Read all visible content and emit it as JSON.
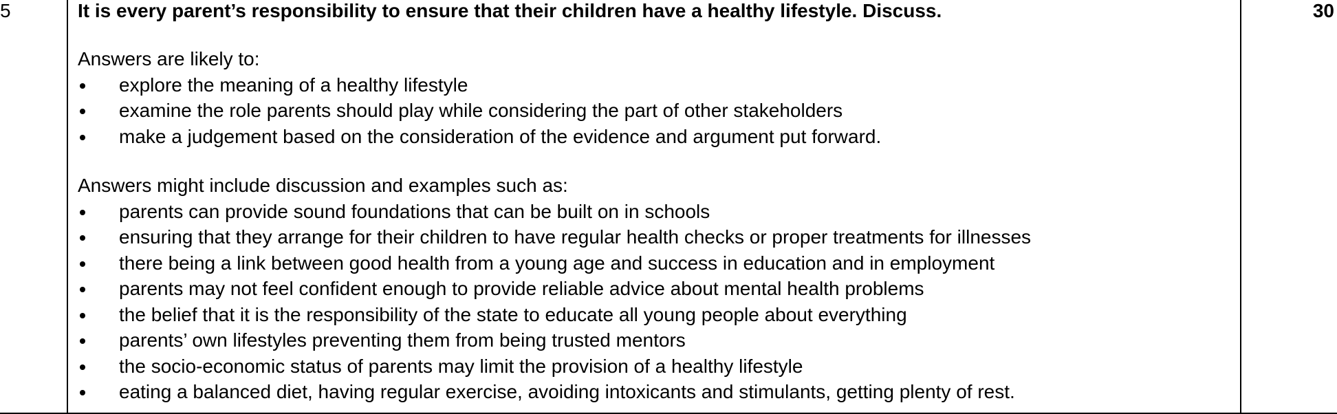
{
  "question_number": "5",
  "question_text": "It is every parent’s responsibility to ensure that their children have a healthy lifestyle. Discuss.",
  "marks": "30",
  "section1": {
    "intro": "Answers are likely to:",
    "items": [
      "explore the meaning of a healthy lifestyle",
      "examine the role parents should play while considering the part of other stakeholders",
      "make a judgement based on the consideration of the evidence and argument put forward."
    ]
  },
  "section2": {
    "intro": "Answers might include discussion and examples such as:",
    "items": [
      "parents can provide sound foundations that can be built on in schools",
      "ensuring that they arrange for their children to have regular health checks or proper treatments for illnesses",
      "there being a link between good health from a young age and success in education and in employment",
      "parents may not feel confident enough to provide reliable advice about mental health problems",
      "the belief that it is the responsibility of the state to educate all young people about everything",
      "parents’ own lifestyles preventing them from being trusted mentors",
      "the socio-economic status of parents may limit the provision of a healthy lifestyle",
      "eating a balanced diet, having regular exercise, avoiding intoxicants and stimulants, getting plenty of rest."
    ]
  }
}
